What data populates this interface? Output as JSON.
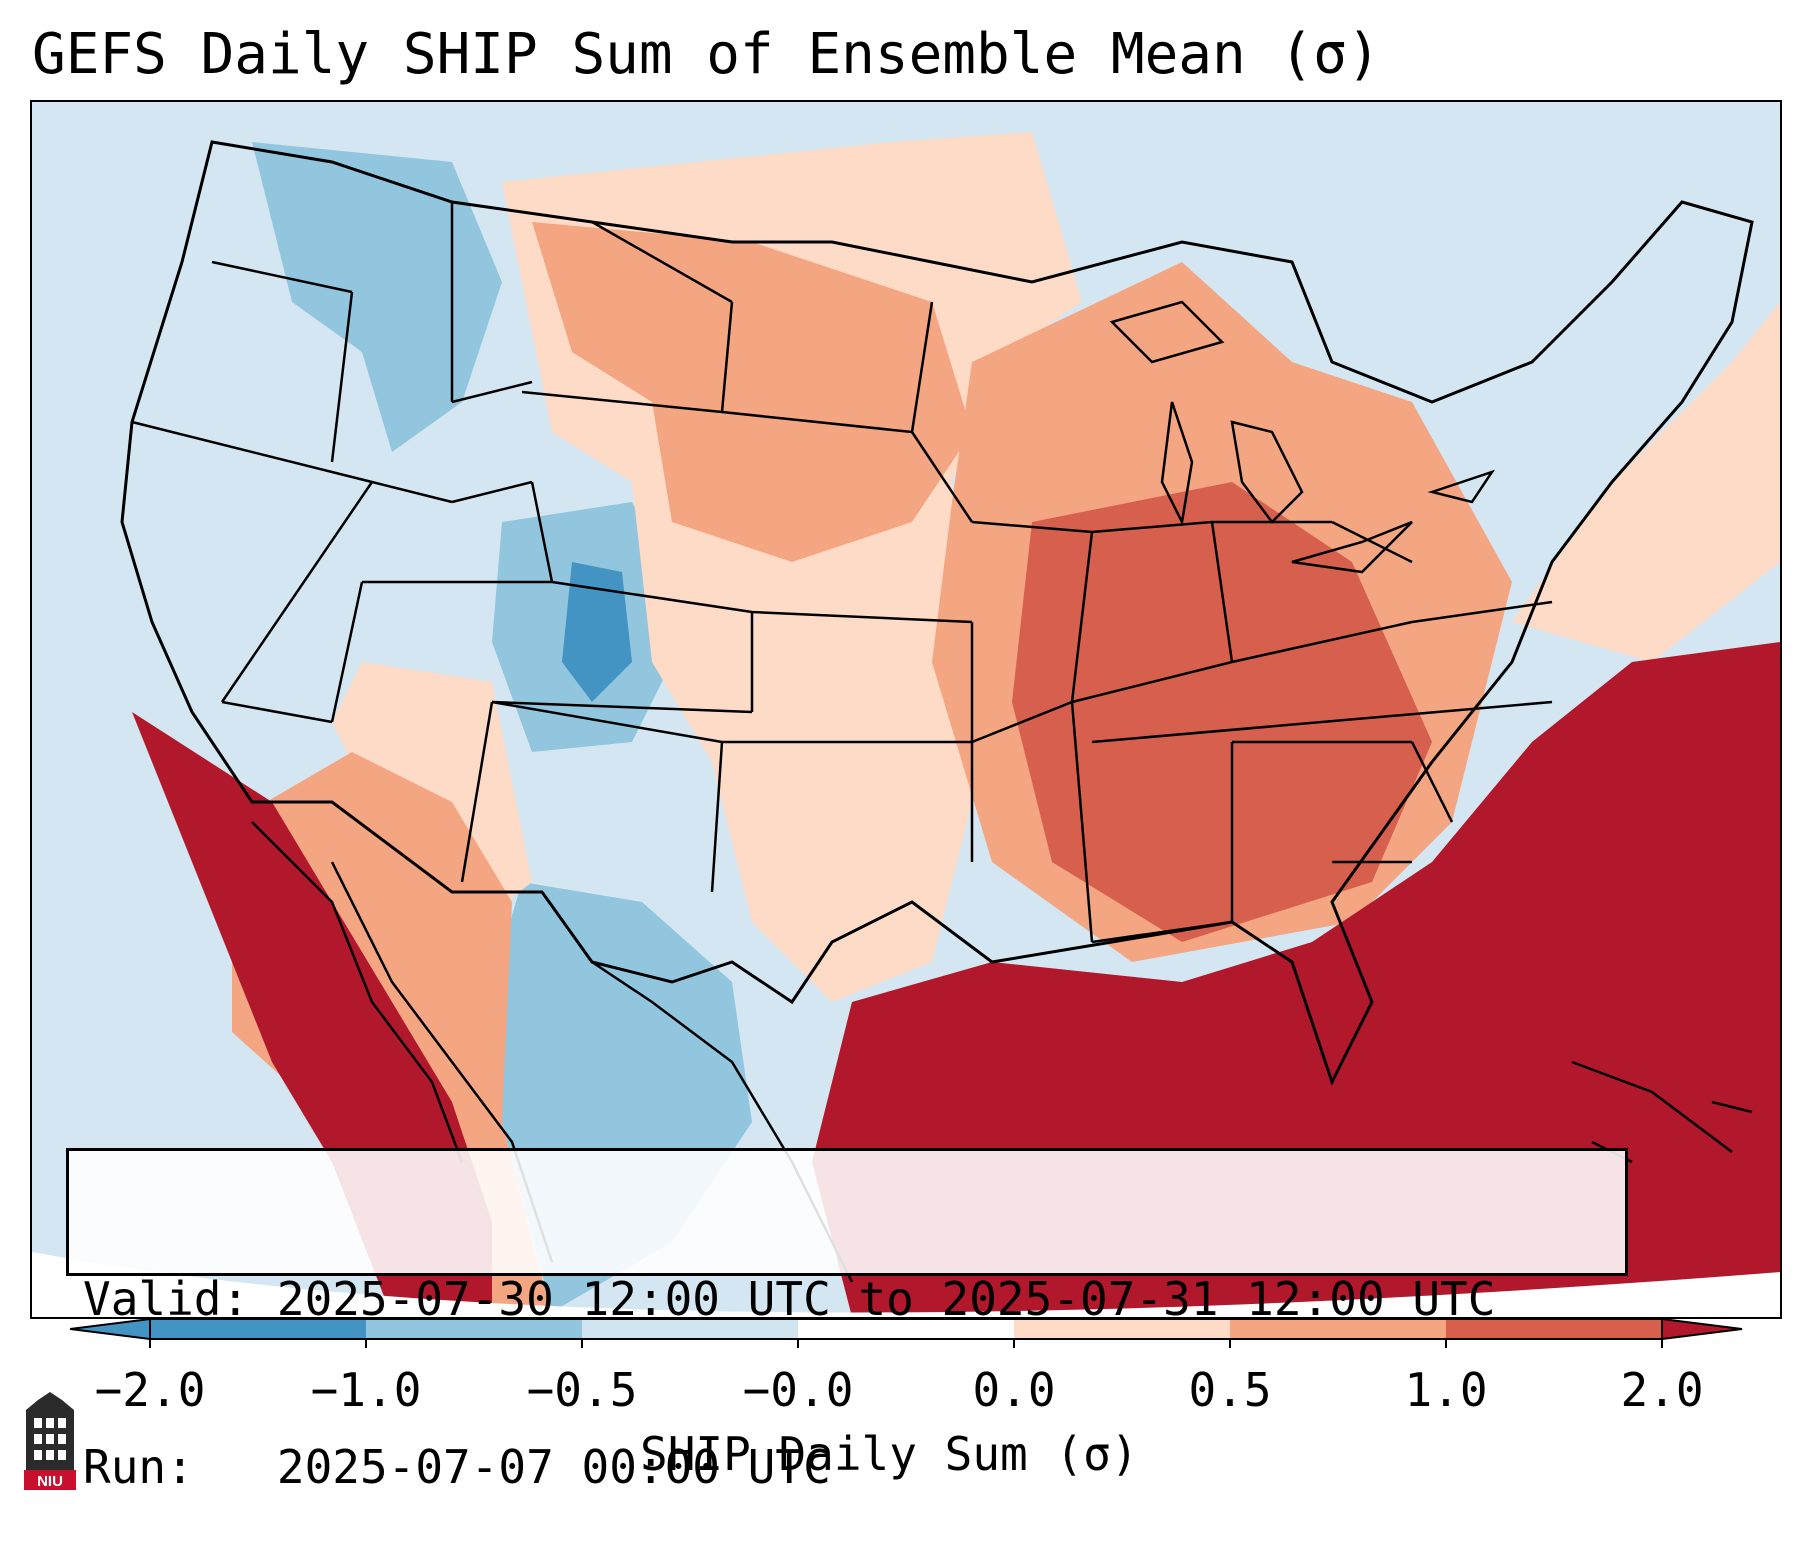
{
  "title": "GEFS Daily SHIP Sum of Ensemble Mean (σ)",
  "info": {
    "valid_label": "Valid:",
    "valid_value": "2025-07-30 12:00 UTC to 2025-07-31 12:00 UTC",
    "run_label": "Run:",
    "run_value": "2025-07-07 00:00 UTC"
  },
  "colorbar": {
    "label": "SHIP Daily Sum (σ)",
    "tick_labels": [
      "−2.0",
      "−1.0",
      "−0.5",
      "−0.0",
      "0.0",
      "0.5",
      "1.0",
      "2.0"
    ],
    "colors": [
      "#4393c3",
      "#92c5de",
      "#d1e5f0",
      "#ffffff",
      "#fddbc7",
      "#f4a582",
      "#d6604d",
      "#b2182b"
    ]
  },
  "logo": {
    "text": "NIU",
    "color": "#c8102e"
  }
}
